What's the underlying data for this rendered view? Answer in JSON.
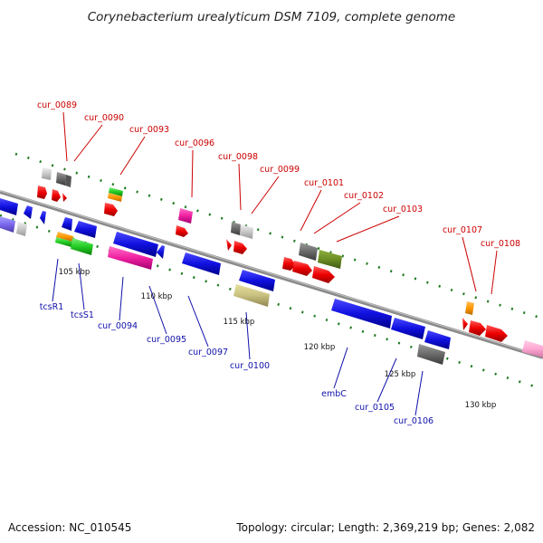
{
  "title": "Corynebacterium urealyticum DSM 7109, complete genome",
  "footer": {
    "accession": "Accession: NC_010545",
    "summary": "Topology: circular; Length: 2,369,219 bp; Genes: 2,082"
  },
  "colors": {
    "top_label": "#cc0000",
    "bottom_label": "#1010aa",
    "backbone": "#8a8a8a",
    "tick": "#1f7a1f"
  },
  "scale_labels": [
    "105 kbp",
    "110 kbp",
    "115 kbp",
    "120 kbp",
    "125 kbp",
    "130 kbp"
  ],
  "top_labels": [
    "cur_0089",
    "cur_0090",
    "cur_0093",
    "cur_0096",
    "cur_0098",
    "cur_0099",
    "cur_0101",
    "cur_0102",
    "cur_0103",
    "cur_0107",
    "cur_0108"
  ],
  "bottom_labels": [
    "tcsR1",
    "tcsS1",
    "cur_0094",
    "cur_0095",
    "cur_0097",
    "cur_0100",
    "embC",
    "cur_0105",
    "cur_0106"
  ]
}
